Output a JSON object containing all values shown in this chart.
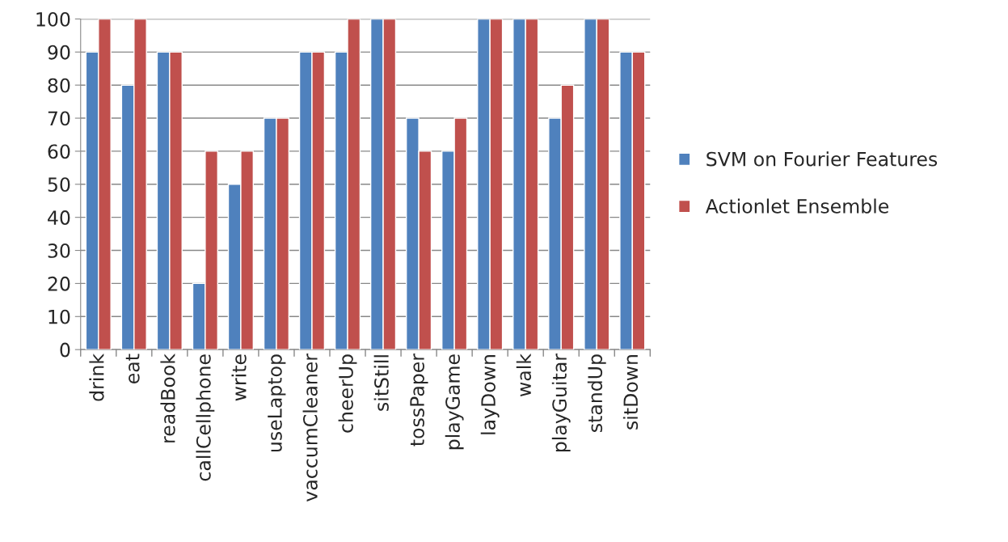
{
  "chart_data": {
    "type": "bar",
    "categories": [
      "drink",
      "eat",
      "readBook",
      "callCellphone",
      "write",
      "useLaptop",
      "vaccumCleaner",
      "cheerUp",
      "sitStill",
      "tossPaper",
      "playGame",
      "layDown",
      "walk",
      "playGuitar",
      "standUp",
      "sitDown"
    ],
    "series": [
      {
        "name": "SVM on Fourier Features",
        "color": "#4f81bd",
        "values": [
          90,
          80,
          90,
          20,
          50,
          70,
          90,
          90,
          100,
          70,
          60,
          100,
          100,
          70,
          100,
          90
        ]
      },
      {
        "name": "Actionlet Ensemble",
        "color": "#c0504d",
        "values": [
          100,
          100,
          90,
          60,
          60,
          70,
          90,
          100,
          100,
          60,
          70,
          100,
          100,
          80,
          100,
          90
        ]
      }
    ],
    "ylim": [
      0,
      100
    ],
    "yticks": [
      0,
      10,
      20,
      30,
      40,
      50,
      60,
      70,
      80,
      90,
      100
    ],
    "grid": "y",
    "legend": "right"
  }
}
